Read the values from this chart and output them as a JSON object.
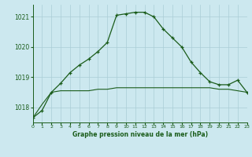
{
  "title": "Graphe pression niveau de la mer (hPa)",
  "background_color": "#cce8ef",
  "grid_color": "#aacdd6",
  "line_color": "#1a5c1a",
  "hours": [
    0,
    1,
    2,
    3,
    4,
    5,
    6,
    7,
    8,
    9,
    10,
    11,
    12,
    13,
    14,
    15,
    16,
    17,
    18,
    19,
    20,
    21,
    22,
    23
  ],
  "pressure_main": [
    1017.65,
    1017.9,
    1018.5,
    1018.8,
    1019.15,
    1019.4,
    1019.6,
    1019.85,
    1020.15,
    1021.05,
    1021.1,
    1021.15,
    1021.15,
    1021.0,
    1020.6,
    1020.3,
    1020.0,
    1019.5,
    1019.15,
    1018.85,
    1018.75,
    1018.75,
    1018.9,
    1018.5
  ],
  "pressure_flat": [
    1017.65,
    1018.1,
    1018.5,
    1018.55,
    1018.55,
    1018.55,
    1018.55,
    1018.6,
    1018.6,
    1018.65,
    1018.65,
    1018.65,
    1018.65,
    1018.65,
    1018.65,
    1018.65,
    1018.65,
    1018.65,
    1018.65,
    1018.65,
    1018.6,
    1018.6,
    1018.55,
    1018.5
  ],
  "ylim": [
    1017.5,
    1021.4
  ],
  "yticks": [
    1018,
    1019,
    1020,
    1021
  ],
  "xlim": [
    0,
    23
  ]
}
